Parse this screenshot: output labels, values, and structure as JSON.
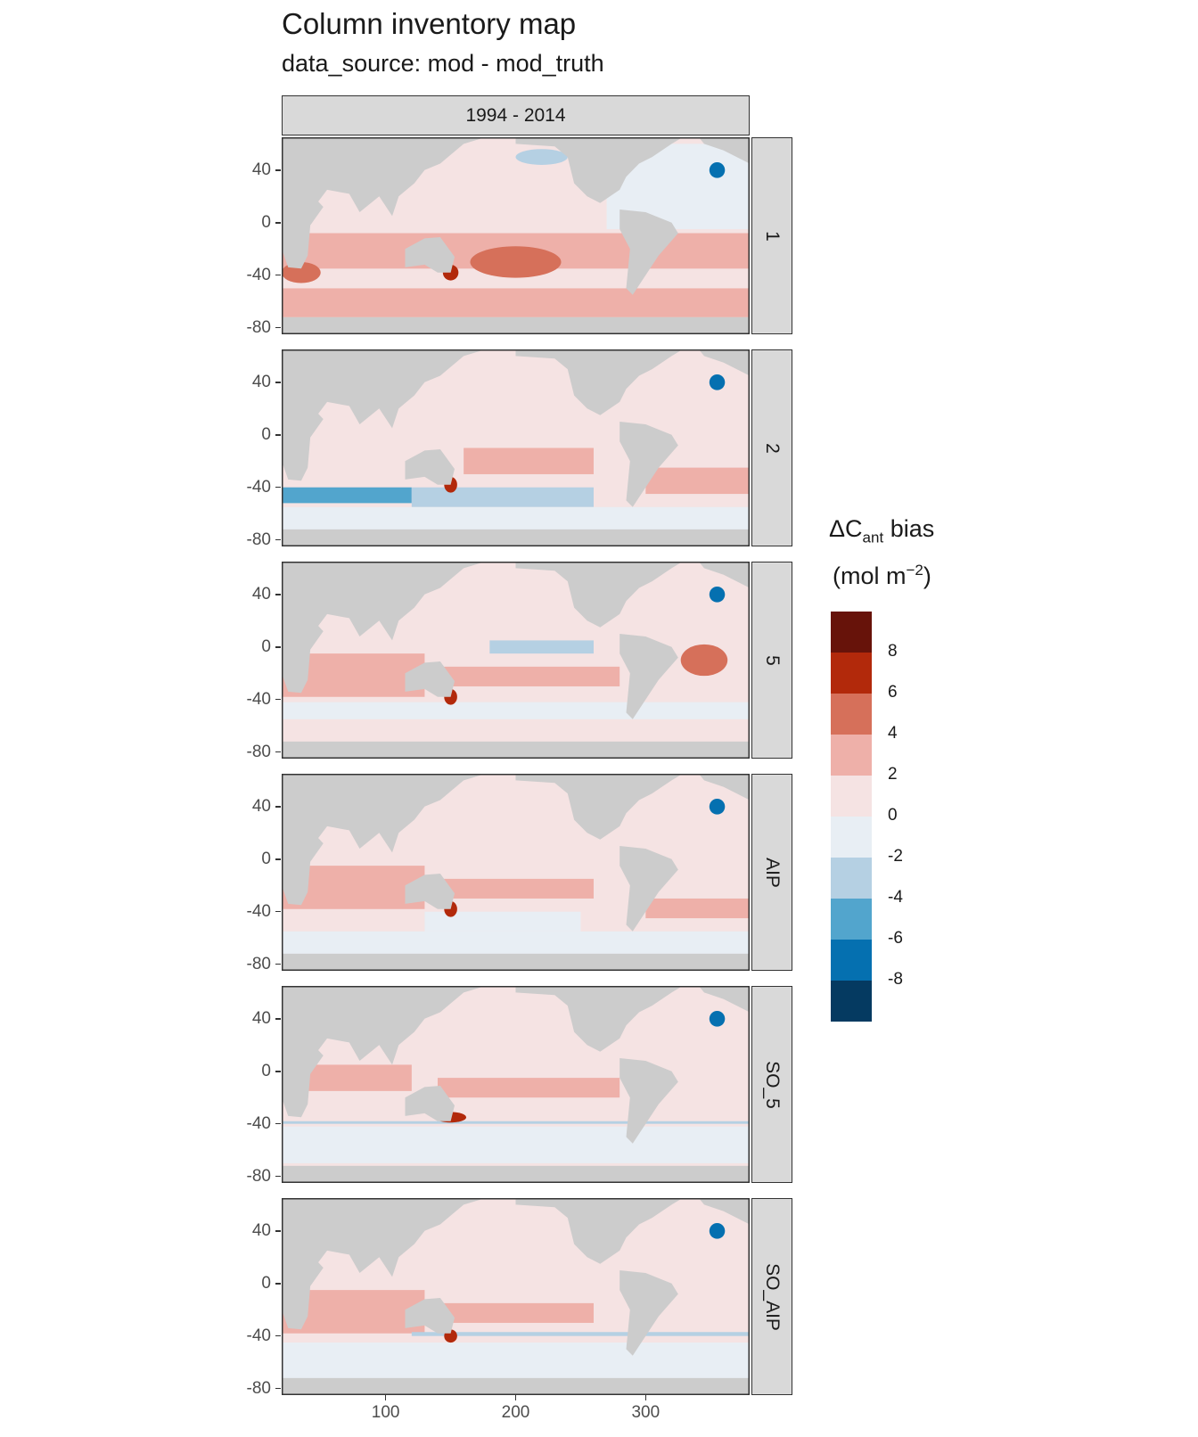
{
  "title": "Column inventory map",
  "subtitle": "data_source: mod - mod_truth",
  "facet_col": "1994 - 2014",
  "panels": [
    {
      "label": "1",
      "pattern": "p1"
    },
    {
      "label": "2",
      "pattern": "p2"
    },
    {
      "label": "5",
      "pattern": "p5"
    },
    {
      "label": "AIP",
      "pattern": "paip"
    },
    {
      "label": "SO_5",
      "pattern": "pso5"
    },
    {
      "label": "SO_AIP",
      "pattern": "psoaip"
    }
  ],
  "y_ticks": [
    "40",
    "0",
    "-40",
    "-80"
  ],
  "x_ticks": [
    "100",
    "200",
    "300"
  ],
  "legend": {
    "title_main": "ΔC",
    "title_sub": "ant",
    "title_rest": " bias",
    "unit_open": "(mol m",
    "unit_sup": "−2",
    "unit_close": ")",
    "labels": [
      "8",
      "6",
      "4",
      "2",
      "0",
      "-2",
      "-4",
      "-6",
      "-8"
    ],
    "colors": [
      "#67130a",
      "#b2290b",
      "#d6705a",
      "#eeb0a9",
      "#f5e3e3",
      "#e8eef4",
      "#b5d0e3",
      "#52a5cd",
      "#0570b0",
      "#053a61"
    ]
  },
  "land_color": "#cccccc",
  "chart_data": {
    "type": "heatmap",
    "title": "Column inventory map",
    "subtitle": "data_source: mod - mod_truth",
    "facet_columns": [
      "1994 - 2014"
    ],
    "facet_rows": [
      "1",
      "2",
      "5",
      "AIP",
      "SO_5",
      "SO_AIP"
    ],
    "x_ticks": [
      100,
      200,
      300
    ],
    "y_ticks": [
      40,
      0,
      -40,
      -80
    ],
    "xlim": [
      20,
      380
    ],
    "ylim": [
      -85,
      65
    ],
    "legend_breaks": [
      8,
      6,
      4,
      2,
      0,
      -2,
      -4,
      -6,
      -8
    ],
    "legend_placement": "right"
  }
}
